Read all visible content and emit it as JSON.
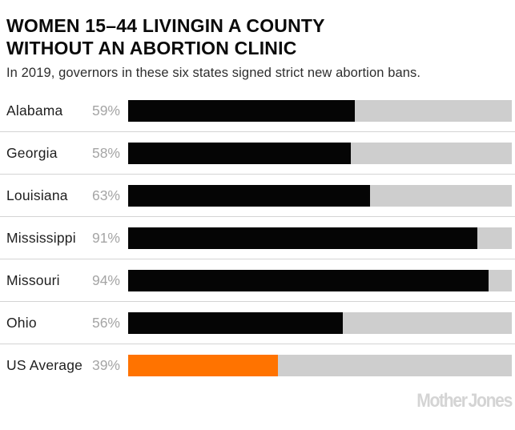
{
  "header": {
    "title_line1": "WOMEN 15–44 LIVINGIN A COUNTY",
    "title_line2": "WITHOUT AN ABORTION CLINIC",
    "subtitle": "In 2019, governors in these six states signed strict new abortion bans."
  },
  "chart_data": {
    "type": "bar",
    "orientation": "horizontal",
    "title": "WOMEN 15–44 LIVINGIN A COUNTY WITHOUT AN ABORTION CLINIC",
    "subtitle": "In 2019, governors in these six states signed strict new abortion bans.",
    "categories": [
      "Alabama",
      "Georgia",
      "Louisiana",
      "Mississippi",
      "Missouri",
      "Ohio",
      "US Average"
    ],
    "values": [
      59,
      58,
      63,
      91,
      94,
      56,
      39
    ],
    "value_labels": [
      "59%",
      "58%",
      "63%",
      "91%",
      "94%",
      "56%",
      "39%"
    ],
    "xlim": [
      0,
      100
    ],
    "unit": "%",
    "grid": false,
    "legend": false,
    "highlight_category": "US Average",
    "track_full_width": true
  },
  "colors": {
    "bar_default": "#050505",
    "bar_highlight": "#ff7300",
    "track": "#cecece",
    "divider": "#d4d4d4",
    "value_label": "#a5a5a5",
    "brand": "#d4d4d4"
  },
  "footer": {
    "brand": "Mother Jones"
  }
}
